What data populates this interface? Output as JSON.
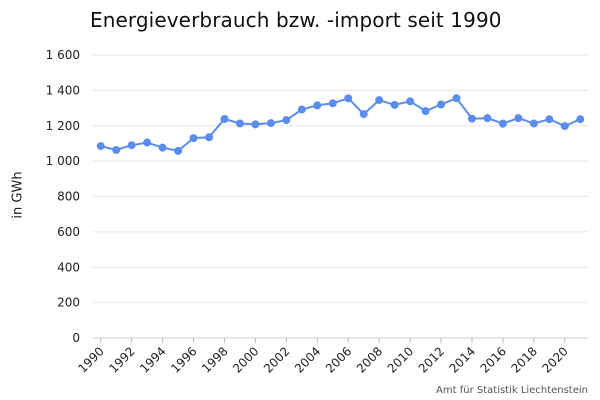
{
  "chart_data": {
    "type": "line",
    "title": "Energieverbrauch bzw. -import seit 1990",
    "ylabel": "in GWh",
    "xlabel": "",
    "ylim": [
      0,
      1600
    ],
    "yticks": [
      0,
      200,
      400,
      600,
      800,
      1000,
      1200,
      1400,
      1600
    ],
    "ytick_labels": [
      "0",
      "200",
      "400",
      "600",
      "800",
      "1 000",
      "1 200",
      "1 400",
      "1 600"
    ],
    "xticks": [
      1990,
      1992,
      1994,
      1996,
      1998,
      2000,
      2002,
      2004,
      2006,
      2008,
      2010,
      2012,
      2014,
      2016,
      2018,
      2020
    ],
    "xtick_labels": [
      "1990",
      "1992",
      "1994",
      "1996",
      "1998",
      "2000",
      "2002",
      "2004",
      "2006",
      "2008",
      "2010",
      "2012",
      "2014",
      "2016",
      "2018",
      "2020"
    ],
    "grid": "horizontal",
    "color": "#5b8def",
    "series": [
      {
        "x": [
          1990,
          1991,
          1992,
          1993,
          1994,
          1995,
          1996,
          1997,
          1998,
          1999,
          2000,
          2001,
          2002,
          2003,
          2004,
          2005,
          2006,
          2007,
          2008,
          2009,
          2010,
          2011,
          2012,
          2013,
          2014,
          2015,
          2016,
          2017,
          2018,
          2019,
          2020,
          2021
        ],
        "values": [
          1085,
          1063,
          1090,
          1105,
          1076,
          1058,
          1130,
          1135,
          1238,
          1213,
          1208,
          1215,
          1232,
          1292,
          1315,
          1327,
          1355,
          1266,
          1345,
          1318,
          1338,
          1283,
          1320,
          1356,
          1240,
          1243,
          1212,
          1243,
          1213,
          1237,
          1198,
          1237
        ]
      }
    ]
  },
  "source": "Amt für Statistik Liechtenstein"
}
